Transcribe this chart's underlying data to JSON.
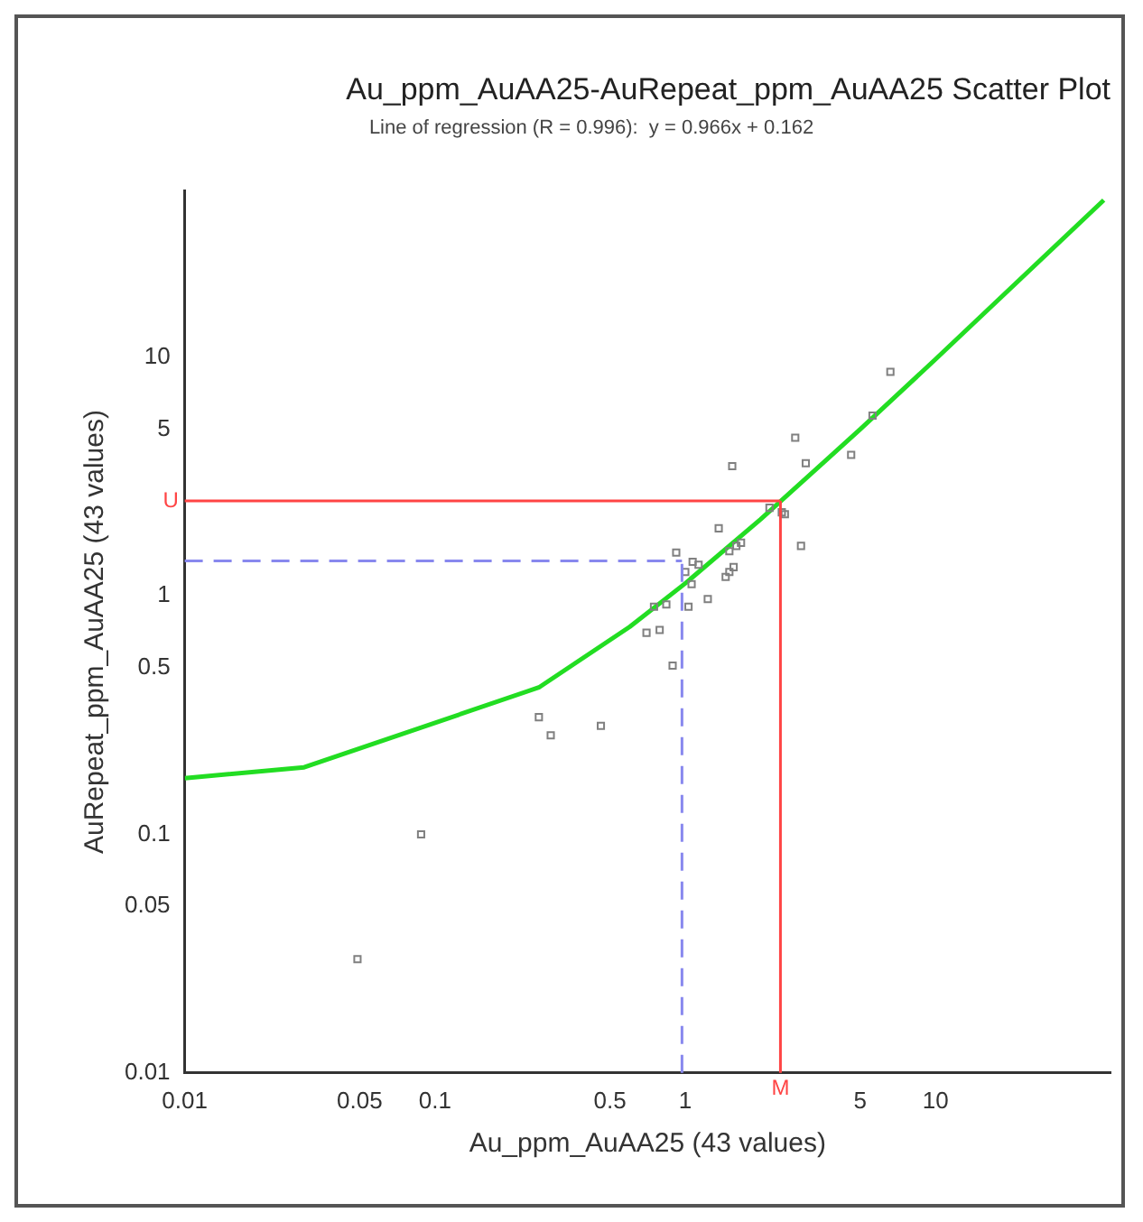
{
  "chart_data": {
    "type": "scatter",
    "title": "Au_ppm_AuAA25-AuRepeat_ppm_AuAA25 Scatter Plot",
    "subtitle": "Line of regression (R = 0.996):  y = 0.966x + 0.162",
    "xlabel": "Au_ppm_AuAA25 (43 values)",
    "ylabel": "AuRepeat_ppm_AuAA25 (43 values)",
    "log": "xy",
    "xlim": [
      0.01,
      50
    ],
    "ylim": [
      0.01,
      50
    ],
    "xticks": [
      0.01,
      0.05,
      0.1,
      0.5,
      1,
      5,
      10
    ],
    "yticks": [
      0.01,
      0.05,
      0.1,
      0.5,
      1,
      5,
      10
    ],
    "grid": false,
    "legend": false,
    "marker": "square",
    "series": [
      {
        "color": "#808080",
        "x": [
          6.6,
          2.75,
          1.54,
          3.03,
          4.6,
          5.6,
          2.17,
          2.5,
          2.9,
          1.36,
          1.6,
          1.67,
          1.5,
          0.92,
          1.13,
          1.0,
          1.5,
          1.56,
          1.06,
          1.23,
          1.03,
          0.84,
          0.75,
          0.7,
          0.79,
          0.89,
          0.26,
          0.29,
          0.46,
          0.088,
          0.049,
          1.45,
          1.07,
          2.43
        ],
        "values": [
          8.7,
          4.6,
          3.5,
          3.6,
          3.9,
          5.7,
          2.34,
          2.2,
          1.62,
          1.92,
          1.62,
          1.67,
          1.54,
          1.52,
          1.35,
          1.26,
          1.26,
          1.32,
          1.12,
          0.97,
          0.9,
          0.92,
          0.9,
          0.7,
          0.72,
          0.51,
          0.31,
          0.26,
          0.285,
          0.1,
          0.03,
          1.2,
          1.39,
          2.24
        ]
      },
      {
        "type": "line",
        "color": "#22dd22",
        "marker": "none",
        "x": [
          0.01,
          0.03,
          0.26,
          0.6,
          1,
          2,
          5,
          10,
          47
        ],
        "values": [
          0.172,
          0.191,
          0.413,
          0.742,
          1.128,
          2.094,
          4.99,
          9.82,
          45.6
        ]
      }
    ],
    "ref_lines": [
      {
        "axis": "x",
        "value": 2.4,
        "label": "M",
        "color": "#ff4444",
        "line_style": "solid"
      },
      {
        "axis": "y",
        "value": 2.5,
        "label": "U",
        "color": "#ff4444",
        "line_style": "solid"
      },
      {
        "axis": "x",
        "value": 0.97,
        "label": null,
        "color": "#8888ee",
        "line_style": "dashed"
      },
      {
        "axis": "y",
        "value": 1.4,
        "label": null,
        "color": "#8888ee",
        "line_style": "dashed"
      }
    ]
  }
}
